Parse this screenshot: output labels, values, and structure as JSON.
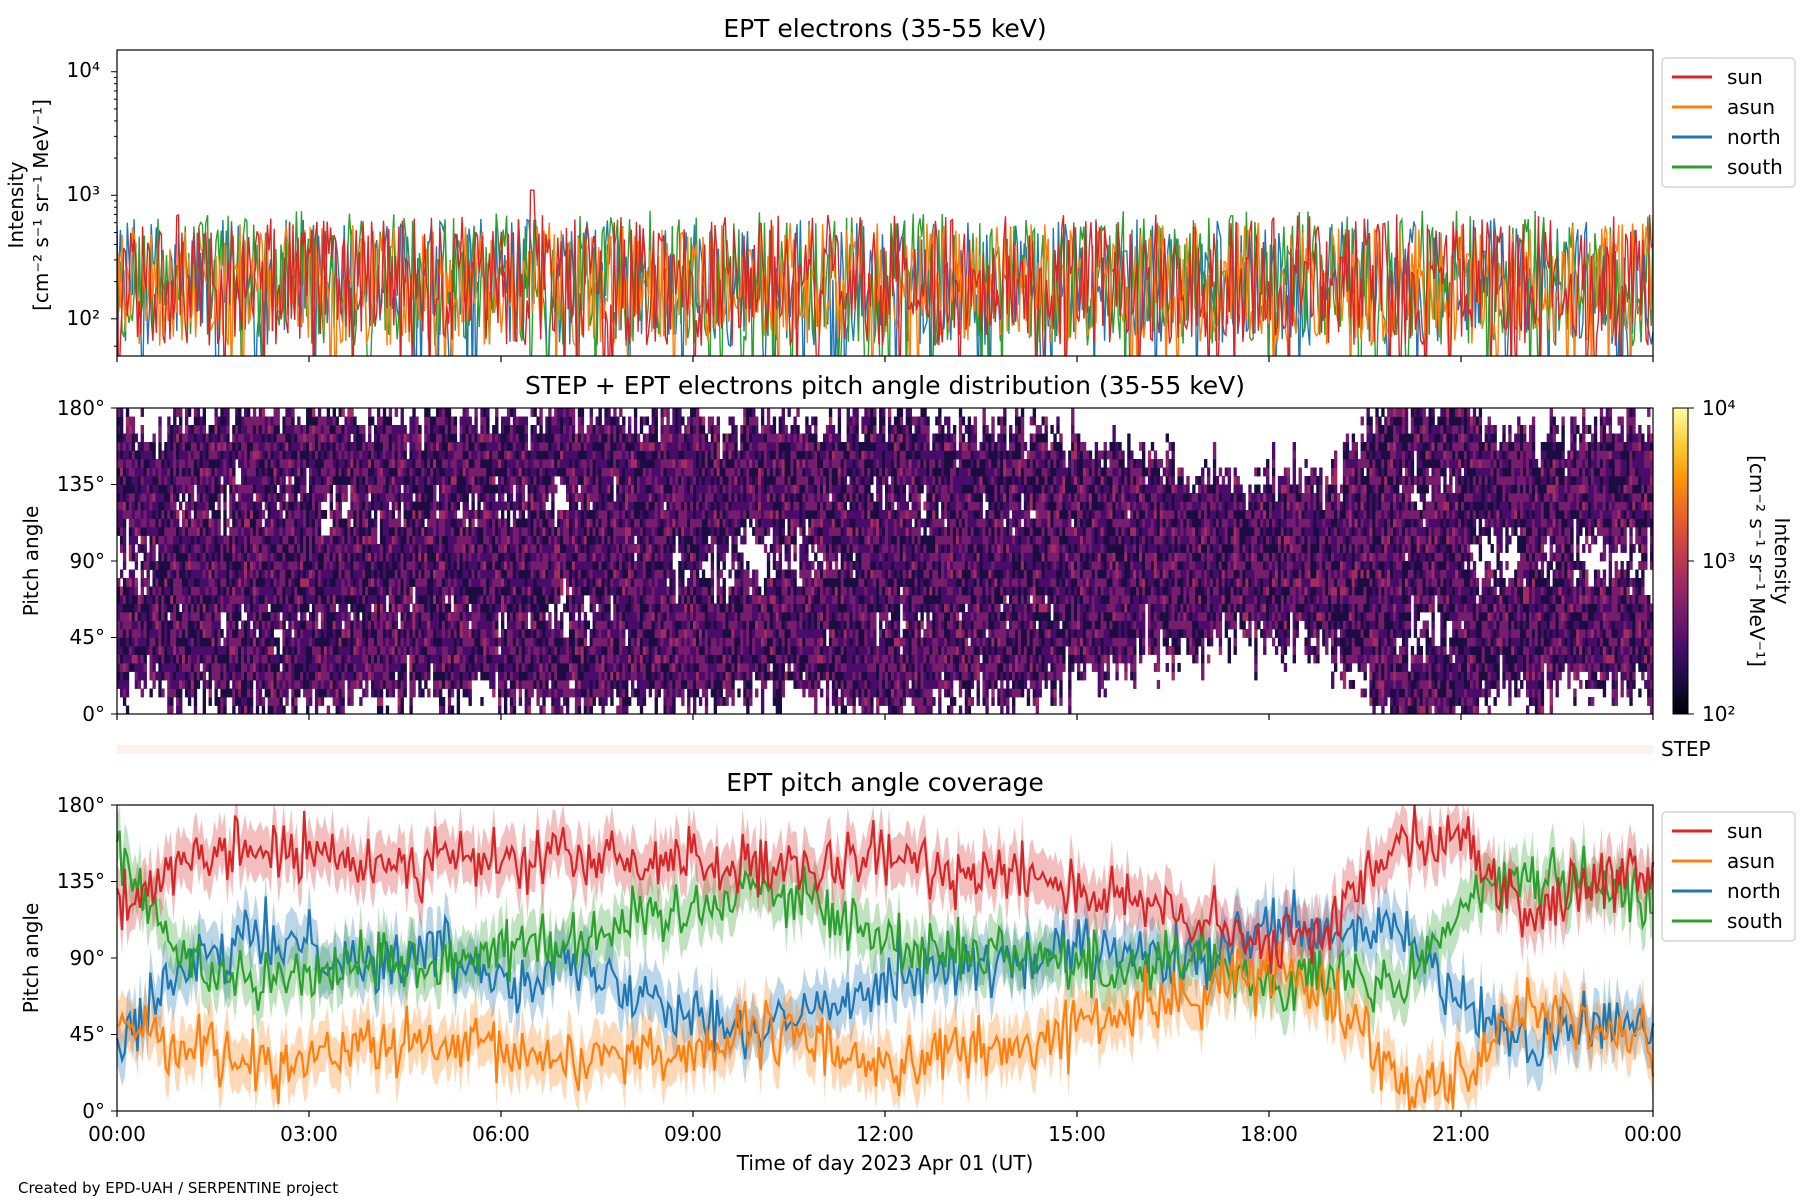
{
  "colors": {
    "sun": "#d62728",
    "asun": "#ff7f0e",
    "north": "#1f77b4",
    "south": "#2ca02c",
    "colormap": [
      "#000004",
      "#1b0c41",
      "#4a0c6b",
      "#781c6d",
      "#a52c60",
      "#cf4446",
      "#ed6925",
      "#fb9b06",
      "#f7d13d",
      "#fcffa4"
    ],
    "step_strip": "#fdf1ec"
  },
  "credit": "Created by EPD-UAH / SERPENTINE project",
  "xlabel": "Time of day 2023 Apr 01 (UT)",
  "panels": {
    "intensity": {
      "title": "EPT electrons (35-55 keV)",
      "ylabel_line1": "Intensity",
      "ylabel_line2": "[cm⁻² s⁻¹ sr⁻¹ MeV⁻¹]",
      "yticks": [
        "10⁴",
        "10³",
        "10²"
      ]
    },
    "pad": {
      "title": "STEP + EPT electrons pitch angle distribution (35-55 keV)",
      "ylabel": "Pitch angle",
      "yticks": [
        "180°",
        "135°",
        "90°",
        "45°",
        "0°"
      ],
      "colorbar_label_line1": "Intensity",
      "colorbar_label_line2": "[cm⁻² s⁻¹ sr⁻¹ MeV⁻¹]",
      "colorbar_ticks": [
        "10⁴",
        "10³",
        "10²"
      ]
    },
    "step": {
      "label": "STEP"
    },
    "coverage": {
      "title": "EPT pitch angle coverage",
      "ylabel": "Pitch angle",
      "yticks": [
        "180°",
        "135°",
        "90°",
        "45°",
        "0°"
      ],
      "xticks": [
        "00:00",
        "03:00",
        "06:00",
        "09:00",
        "12:00",
        "15:00",
        "18:00",
        "21:00",
        "00:00"
      ]
    }
  },
  "legend": [
    "sun",
    "asun",
    "north",
    "south"
  ],
  "chart_data": [
    {
      "type": "line",
      "title": "EPT electrons (35-55 keV)",
      "xlabel": "",
      "ylabel": "Intensity [cm⁻² s⁻¹ sr⁻¹ MeV⁻¹]",
      "yscale": "log",
      "xlim_hours": [
        0,
        24
      ],
      "ylim": [
        50,
        15000
      ],
      "legend_position": "outside-right-top",
      "series": [
        {
          "name": "sun",
          "typical_range": [
            60,
            700
          ],
          "peak": 1100,
          "peak_hour": 6.5
        },
        {
          "name": "asun",
          "typical_range": [
            60,
            600
          ]
        },
        {
          "name": "north",
          "typical_range": [
            60,
            650
          ]
        },
        {
          "name": "south",
          "typical_range": [
            60,
            750
          ]
        }
      ]
    },
    {
      "type": "heatmap",
      "title": "STEP + EPT electrons pitch angle distribution (35-55 keV)",
      "ylabel": "Pitch angle",
      "ylim": [
        0,
        180
      ],
      "colorbar": {
        "scale": "log",
        "range": [
          100,
          10000
        ],
        "label": "Intensity [cm⁻² s⁻¹ sr⁻¹ MeV⁻¹]"
      },
      "typical_intensity": [
        150,
        600
      ]
    },
    {
      "type": "line",
      "title": "EPT pitch angle coverage",
      "xlabel": "Time of day 2023 Apr 01 (UT)",
      "ylabel": "Pitch angle",
      "ylim": [
        0,
        180
      ],
      "x_ticks_hours": [
        0,
        3,
        6,
        9,
        12,
        15,
        18,
        21,
        24
      ],
      "legend_position": "outside-right-top",
      "series": [
        {
          "name": "sun",
          "knots": [
            [
              0,
              125
            ],
            [
              1,
              140
            ],
            [
              2,
              155
            ],
            [
              3,
              150
            ],
            [
              4,
              145
            ],
            [
              5,
              150
            ],
            [
              6,
              145
            ],
            [
              7,
              150
            ],
            [
              8,
              145
            ],
            [
              9,
              150
            ],
            [
              10,
              140
            ],
            [
              11,
              140
            ],
            [
              12,
              150
            ],
            [
              13,
              140
            ],
            [
              14,
              145
            ],
            [
              15,
              130
            ],
            [
              16,
              120
            ],
            [
              17,
              110
            ],
            [
              18,
              95
            ],
            [
              19,
              110
            ],
            [
              20,
              165
            ],
            [
              21,
              160
            ],
            [
              22,
              115
            ],
            [
              23,
              132
            ],
            [
              24,
              137
            ]
          ]
        },
        {
          "name": "asun",
          "knots": [
            [
              0,
              55
            ],
            [
              1,
              40
            ],
            [
              2,
              30
            ],
            [
              3,
              30
            ],
            [
              4,
              40
            ],
            [
              5,
              35
            ],
            [
              6,
              35
            ],
            [
              7,
              30
            ],
            [
              8,
              35
            ],
            [
              9,
              35
            ],
            [
              10,
              45
            ],
            [
              11,
              40
            ],
            [
              12,
              25
            ],
            [
              13,
              35
            ],
            [
              14,
              35
            ],
            [
              15,
              50
            ],
            [
              16,
              60
            ],
            [
              17,
              70
            ],
            [
              18,
              85
            ],
            [
              19,
              70
            ],
            [
              20,
              20
            ],
            [
              21,
              20
            ],
            [
              22,
              65
            ],
            [
              23,
              47
            ],
            [
              24,
              42
            ]
          ]
        },
        {
          "name": "north",
          "knots": [
            [
              0,
              40
            ],
            [
              1,
              80
            ],
            [
              2,
              100
            ],
            [
              3,
              100
            ],
            [
              4,
              85
            ],
            [
              5,
              95
            ],
            [
              6,
              80
            ],
            [
              7,
              85
            ],
            [
              8,
              75
            ],
            [
              9,
              60
            ],
            [
              10,
              45
            ],
            [
              11,
              60
            ],
            [
              12,
              80
            ],
            [
              13,
              85
            ],
            [
              14,
              85
            ],
            [
              15,
              95
            ],
            [
              16,
              90
            ],
            [
              17,
              85
            ],
            [
              18,
              110
            ],
            [
              19,
              100
            ],
            [
              20,
              110
            ],
            [
              21,
              60
            ],
            [
              22,
              40
            ],
            [
              23,
              50
            ],
            [
              24,
              52
            ]
          ]
        },
        {
          "name": "south",
          "knots": [
            [
              0,
              150
            ],
            [
              1,
              90
            ],
            [
              2,
              80
            ],
            [
              3,
              80
            ],
            [
              4,
              90
            ],
            [
              5,
              85
            ],
            [
              6,
              100
            ],
            [
              7,
              100
            ],
            [
              8,
              110
            ],
            [
              9,
              120
            ],
            [
              10,
              135
            ],
            [
              11,
              120
            ],
            [
              12,
              100
            ],
            [
              13,
              95
            ],
            [
              14,
              95
            ],
            [
              15,
              85
            ],
            [
              16,
              85
            ],
            [
              17,
              95
            ],
            [
              18,
              70
            ],
            [
              19,
              80
            ],
            [
              20,
              70
            ],
            [
              21,
              120
            ],
            [
              22,
              140
            ],
            [
              23,
              130
            ],
            [
              24,
              128
            ]
          ]
        }
      ],
      "band_halfwidth_deg": 15
    }
  ]
}
